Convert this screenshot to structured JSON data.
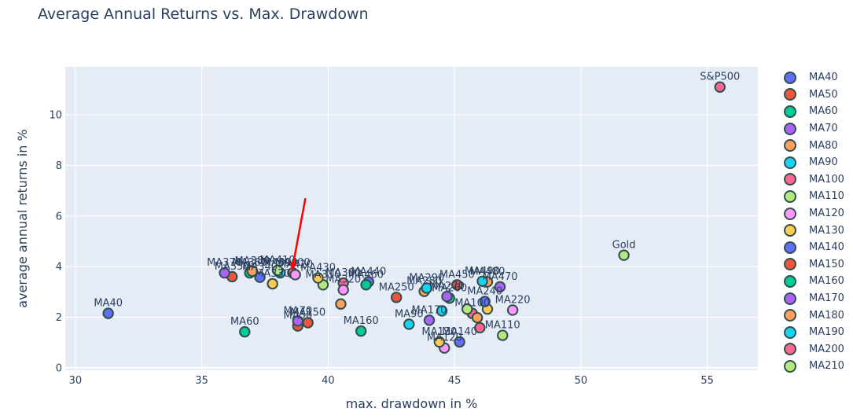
{
  "chart_data": {
    "type": "scatter",
    "title": "Average Annual Returns vs. Max. Drawdown",
    "xlabel": "max. drawdown in %",
    "ylabel": "average annual returns in %",
    "xlim": [
      29.6,
      57.0
    ],
    "ylim": [
      -0.1,
      11.9
    ],
    "x_ticks": [
      30,
      35,
      40,
      45,
      50,
      55
    ],
    "y_ticks": [
      0,
      2,
      4,
      6,
      8,
      10
    ],
    "grid": true,
    "legend_position": "right",
    "annotation": {
      "type": "arrow",
      "color": "#ff0000",
      "from": [
        39.1,
        6.7
      ],
      "to": [
        38.6,
        4.0
      ]
    },
    "points": [
      {
        "label": "MA40",
        "x": 31.3,
        "y": 2.15,
        "color": "#636efa"
      },
      {
        "label": "MA50",
        "x": 38.8,
        "y": 1.65,
        "color": "#ef553b"
      },
      {
        "label": "MA60",
        "x": 36.7,
        "y": 1.42,
        "color": "#00cc96"
      },
      {
        "label": "MA70",
        "x": 38.8,
        "y": 1.85,
        "color": "#ab63fa"
      },
      {
        "label": "MA80",
        "x": 40.5,
        "y": 2.52,
        "color": "#ffa15a"
      },
      {
        "label": "MA90",
        "x": 43.2,
        "y": 1.72,
        "color": "#19d3f3"
      },
      {
        "label": "MA100",
        "x": 45.7,
        "y": 2.15,
        "color": "#ff6692"
      },
      {
        "label": "MA110",
        "x": 46.9,
        "y": 1.28,
        "color": "#b6e880"
      },
      {
        "label": "MA120",
        "x": 44.6,
        "y": 0.78,
        "color": "#ff97ff"
      },
      {
        "label": "MA130",
        "x": 44.4,
        "y": 1.02,
        "color": "#fecb52"
      },
      {
        "label": "MA140",
        "x": 45.2,
        "y": 1.02,
        "color": "#636efa"
      },
      {
        "label": "MA150",
        "x": 39.2,
        "y": 1.78,
        "color": "#ef553b"
      },
      {
        "label": "MA160",
        "x": 41.3,
        "y": 1.45,
        "color": "#00cc96"
      },
      {
        "label": "MA170",
        "x": 44.0,
        "y": 1.88,
        "color": "#ab63fa"
      },
      {
        "label": "MA180",
        "x": 45.9,
        "y": 1.98,
        "color": "#ffa15a"
      },
      {
        "label": "MA190",
        "x": 44.5,
        "y": 2.25,
        "color": "#19d3f3"
      },
      {
        "label": "MA200",
        "x": 46.0,
        "y": 1.58,
        "color": "#ff6692"
      },
      {
        "label": "MA210",
        "x": 45.5,
        "y": 2.32,
        "color": "#b6e880"
      },
      {
        "label": "MA220",
        "x": 47.3,
        "y": 2.28,
        "color": "#ff97ff"
      },
      {
        "label": "MA230",
        "x": 46.3,
        "y": 2.32,
        "color": "#fecb52"
      },
      {
        "label": "MA240",
        "x": 46.2,
        "y": 2.62,
        "color": "#636efa"
      },
      {
        "label": "MA250",
        "x": 42.7,
        "y": 2.78,
        "color": "#ef553b"
      },
      {
        "label": "MA260",
        "x": 44.8,
        "y": 2.75,
        "color": "#00cc96"
      },
      {
        "label": "MA270",
        "x": 44.7,
        "y": 2.82,
        "color": "#ab63fa"
      },
      {
        "label": "MA280",
        "x": 43.8,
        "y": 3.02,
        "color": "#ffa15a"
      },
      {
        "label": "MA290",
        "x": 43.9,
        "y": 3.15,
        "color": "#19d3f3"
      },
      {
        "label": "MA300",
        "x": 40.6,
        "y": 3.35,
        "color": "#ff6692"
      },
      {
        "label": "MA310",
        "x": 39.8,
        "y": 3.28,
        "color": "#b6e880"
      },
      {
        "label": "MA320",
        "x": 40.6,
        "y": 3.08,
        "color": "#ff97ff"
      },
      {
        "label": "MA330",
        "x": 37.8,
        "y": 3.32,
        "color": "#fecb52"
      },
      {
        "label": "MA340",
        "x": 37.3,
        "y": 3.58,
        "color": "#636efa"
      },
      {
        "label": "MA350",
        "x": 36.2,
        "y": 3.6,
        "color": "#ef553b"
      },
      {
        "label": "MA360",
        "x": 36.9,
        "y": 3.75,
        "color": "#00cc96"
      },
      {
        "label": "MA370",
        "x": 35.9,
        "y": 3.75,
        "color": "#ab63fa"
      },
      {
        "label": "MA380",
        "x": 37.0,
        "y": 3.82,
        "color": "#ffa15a"
      },
      {
        "label": "MA390",
        "x": 38.1,
        "y": 3.75,
        "color": "#19d3f3"
      },
      {
        "label": "MA400",
        "x": 38.6,
        "y": 3.75,
        "color": "#ff6692"
      },
      {
        "label": "MA410",
        "x": 38.0,
        "y": 3.85,
        "color": "#b6e880"
      },
      {
        "label": "MA420",
        "x": 38.7,
        "y": 3.68,
        "color": "#ff97ff"
      },
      {
        "label": "MA430",
        "x": 39.6,
        "y": 3.55,
        "color": "#fecb52"
      },
      {
        "label": "MA440",
        "x": 41.6,
        "y": 3.4,
        "color": "#636efa"
      },
      {
        "label": "MA450",
        "x": 45.1,
        "y": 3.28,
        "color": "#ef553b"
      },
      {
        "label": "MA460",
        "x": 41.5,
        "y": 3.28,
        "color": "#00cc96"
      },
      {
        "label": "MA470",
        "x": 46.8,
        "y": 3.2,
        "color": "#ab63fa"
      },
      {
        "label": "MA480",
        "x": 46.3,
        "y": 3.4,
        "color": "#ffa15a"
      },
      {
        "label": "MA490",
        "x": 46.1,
        "y": 3.42,
        "color": "#19d3f3"
      },
      {
        "label": "S&P500",
        "x": 55.5,
        "y": 11.1,
        "color": "#ff6692"
      },
      {
        "label": "Gold",
        "x": 51.7,
        "y": 4.45,
        "color": "#b6e880"
      }
    ],
    "shown_labels": [
      {
        "text": "MA40",
        "point": 0
      },
      {
        "text": "MA60",
        "point": 2
      },
      {
        "text": "MA70",
        "point": 3
      },
      {
        "text": "MA50",
        "point": 1
      },
      {
        "text": "MA150",
        "point": 11
      },
      {
        "text": "MA160",
        "point": 12
      },
      {
        "text": "MA90",
        "point": 5
      },
      {
        "text": "MA170",
        "point": 13
      },
      {
        "text": "MA130",
        "point": 9
      },
      {
        "text": "MA140",
        "point": 10
      },
      {
        "text": "MA120",
        "point": 8
      },
      {
        "text": "MA110",
        "point": 7
      },
      {
        "text": "MA100",
        "point": 6
      },
      {
        "text": "MA220",
        "point": 18
      },
      {
        "text": "MA240",
        "point": 20
      },
      {
        "text": "MA250",
        "point": 21
      },
      {
        "text": "MA260",
        "point": 22
      },
      {
        "text": "MA270",
        "point": 23
      },
      {
        "text": "MA280",
        "point": 24
      },
      {
        "text": "MA290",
        "point": 25
      },
      {
        "text": "MA300",
        "point": 26
      },
      {
        "text": "MA310",
        "point": 27
      },
      {
        "text": "MA320",
        "point": 28
      },
      {
        "text": "MA330",
        "point": 29
      },
      {
        "text": "MA340",
        "point": 30
      },
      {
        "text": "MA350",
        "point": 31
      },
      {
        "text": "MA360",
        "point": 32
      },
      {
        "text": "MA370",
        "point": 33
      },
      {
        "text": "MA380",
        "point": 34
      },
      {
        "text": "MA390",
        "point": 35
      },
      {
        "text": "MA400",
        "point": 36
      },
      {
        "text": "MA410",
        "point": 37
      },
      {
        "text": "MA420",
        "point": 38
      },
      {
        "text": "MA430",
        "point": 39
      },
      {
        "text": "MA440",
        "point": 40
      },
      {
        "text": "MA450",
        "point": 41
      },
      {
        "text": "MA460",
        "point": 42
      },
      {
        "text": "MA470",
        "point": 43
      },
      {
        "text": "MA480",
        "point": 44
      },
      {
        "text": "MA490",
        "point": 45
      },
      {
        "text": "S&P500",
        "point": 46
      },
      {
        "text": "Gold",
        "point": 47
      }
    ],
    "legend": [
      {
        "label": "MA40",
        "color": "#636efa"
      },
      {
        "label": "MA50",
        "color": "#ef553b"
      },
      {
        "label": "MA60",
        "color": "#00cc96"
      },
      {
        "label": "MA70",
        "color": "#ab63fa"
      },
      {
        "label": "MA80",
        "color": "#ffa15a"
      },
      {
        "label": "MA90",
        "color": "#19d3f3"
      },
      {
        "label": "MA100",
        "color": "#ff6692"
      },
      {
        "label": "MA110",
        "color": "#b6e880"
      },
      {
        "label": "MA120",
        "color": "#ff97ff"
      },
      {
        "label": "MA130",
        "color": "#fecb52"
      },
      {
        "label": "MA140",
        "color": "#636efa"
      },
      {
        "label": "MA150",
        "color": "#ef553b"
      },
      {
        "label": "MA160",
        "color": "#00cc96"
      },
      {
        "label": "MA170",
        "color": "#ab63fa"
      },
      {
        "label": "MA180",
        "color": "#ffa15a"
      },
      {
        "label": "MA190",
        "color": "#19d3f3"
      },
      {
        "label": "MA200",
        "color": "#ff6692"
      },
      {
        "label": "MA210",
        "color": "#b6e880"
      }
    ]
  }
}
